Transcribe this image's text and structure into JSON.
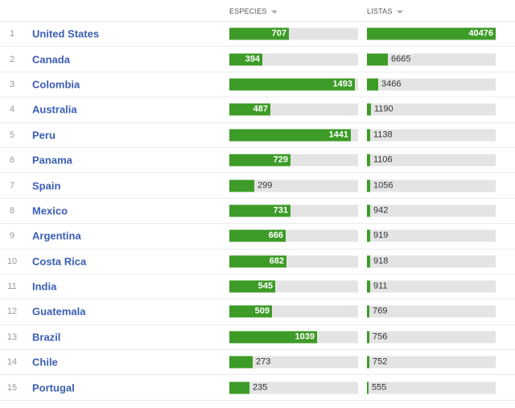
{
  "columns": {
    "species_label": "ESPECIES",
    "lists_label": "LISTAS",
    "sort_icon": "caret-down-icon"
  },
  "colors": {
    "bar": "#3d9b27",
    "track": "#e4e4e4",
    "link": "#3b5db5"
  },
  "scale": {
    "species_max": 1530,
    "lists_max": 40476
  },
  "rows": [
    {
      "rank": "1",
      "country": "United States",
      "species": 707,
      "lists": 40476
    },
    {
      "rank": "2",
      "country": "Canada",
      "species": 394,
      "lists": 6665
    },
    {
      "rank": "3",
      "country": "Colombia",
      "species": 1493,
      "lists": 3466
    },
    {
      "rank": "4",
      "country": "Australia",
      "species": 487,
      "lists": 1190
    },
    {
      "rank": "5",
      "country": "Peru",
      "species": 1441,
      "lists": 1138
    },
    {
      "rank": "6",
      "country": "Panama",
      "species": 729,
      "lists": 1106
    },
    {
      "rank": "7",
      "country": "Spain",
      "species": 299,
      "lists": 1056
    },
    {
      "rank": "8",
      "country": "Mexico",
      "species": 731,
      "lists": 942
    },
    {
      "rank": "9",
      "country": "Argentina",
      "species": 666,
      "lists": 919
    },
    {
      "rank": "10",
      "country": "Costa Rica",
      "species": 682,
      "lists": 918
    },
    {
      "rank": "11",
      "country": "India",
      "species": 545,
      "lists": 911
    },
    {
      "rank": "12",
      "country": "Guatemala",
      "species": 509,
      "lists": 769
    },
    {
      "rank": "13",
      "country": "Brazil",
      "species": 1039,
      "lists": 756
    },
    {
      "rank": "14",
      "country": "Chile",
      "species": 273,
      "lists": 752
    },
    {
      "rank": "15",
      "country": "Portugal",
      "species": 235,
      "lists": 555
    }
  ]
}
